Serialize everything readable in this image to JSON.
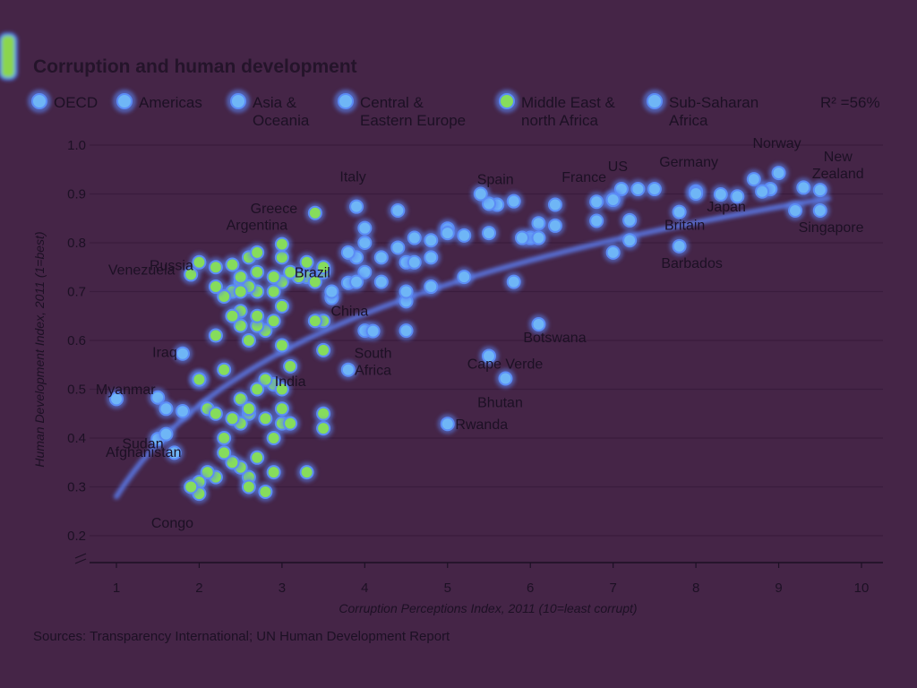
{
  "chart_data": {
    "type": "scatter",
    "title": "Corruption and human development",
    "xlabel": "Corruption Perceptions Index, 2011 (10=least corrupt)",
    "ylabel": "Human Development Index, 2011 (1=best)",
    "xlim": [
      1,
      10
    ],
    "ylim": [
      0.2,
      1.0
    ],
    "x_ticks": [
      "1",
      "2",
      "3",
      "4",
      "5",
      "6",
      "7",
      "8",
      "9",
      "10"
    ],
    "y_ticks": [
      "0.2",
      "0.3",
      "0.4",
      "0.5",
      "0.6",
      "0.7",
      "0.8",
      "0.9",
      "1.0"
    ],
    "grid": "horizontal",
    "legend_position": "top",
    "legend": [
      {
        "label": "OECD",
        "type": "marker"
      },
      {
        "label": "Americas",
        "type": "marker"
      },
      {
        "label": "Asia & Oceania",
        "lines": [
          "Asia &",
          "Oceania"
        ],
        "type": "marker"
      },
      {
        "label": "Central & Eastern Europe",
        "lines": [
          "Central &",
          "Eastern Europe"
        ],
        "type": "marker"
      },
      {
        "label": "Middle East & north Africa",
        "lines": [
          "Middle East &",
          "north Africa"
        ],
        "type": "marker"
      },
      {
        "label": "Sub-Saharan Africa",
        "lines": [
          "Sub-Saharan",
          "Africa"
        ],
        "type": "marker"
      },
      {
        "label": "R² =56%",
        "type": "line"
      }
    ],
    "annotations": [
      {
        "label": "Spain",
        "x": 5.6,
        "y": 0.88
      },
      {
        "label": "France",
        "x": 6.8,
        "y": 0.884
      },
      {
        "label": "US",
        "x": 7.1,
        "y": 0.91
      },
      {
        "label": "Germany",
        "x": 8.0,
        "y": 0.905
      },
      {
        "label": "Norway",
        "x": 9.0,
        "y": 0.943
      },
      {
        "label": "New Zealand",
        "lines": [
          "New",
          "Zealand"
        ],
        "x": 9.5,
        "y": 0.908
      },
      {
        "label": "Italy",
        "x": 3.9,
        "y": 0.874
      },
      {
        "label": "Greece",
        "x": 3.4,
        "y": 0.861
      },
      {
        "label": "Russia",
        "x": 2.4,
        "y": 0.755
      },
      {
        "label": "Argentina",
        "x": 3.0,
        "y": 0.797
      },
      {
        "label": "Brazil",
        "x": 3.8,
        "y": 0.718
      },
      {
        "label": "Venezuela",
        "x": 1.9,
        "y": 0.735
      },
      {
        "label": "Britain",
        "x": 7.8,
        "y": 0.863
      },
      {
        "label": "Japan",
        "x": 8.0,
        "y": 0.901
      },
      {
        "label": "Singapore",
        "x": 9.2,
        "y": 0.866
      },
      {
        "label": "Barbados",
        "x": 7.8,
        "y": 0.793
      },
      {
        "label": "Botswana",
        "x": 6.1,
        "y": 0.633
      },
      {
        "label": "China",
        "x": 3.6,
        "y": 0.687
      },
      {
        "label": "South Africa",
        "lines": [
          "South",
          "Africa"
        ],
        "x": 4.1,
        "y": 0.619
      },
      {
        "label": "Iraq",
        "x": 1.8,
        "y": 0.573
      },
      {
        "label": "India",
        "x": 3.1,
        "y": 0.547
      },
      {
        "label": "Cape Verde",
        "x": 5.5,
        "y": 0.568
      },
      {
        "label": "Bhutan",
        "x": 5.7,
        "y": 0.522
      },
      {
        "label": "Myanmar",
        "x": 1.5,
        "y": 0.483
      },
      {
        "label": "Sudan",
        "x": 1.6,
        "y": 0.408
      },
      {
        "label": "Rwanda",
        "x": 5.0,
        "y": 0.429
      },
      {
        "label": "Afghanistan",
        "x": 1.5,
        "y": 0.398
      },
      {
        "label": "Congo",
        "x": 2.0,
        "y": 0.286
      }
    ],
    "trend_line": {
      "label": "R² =56%",
      "r_squared": 0.56
    },
    "series": [
      {
        "name": "OECD",
        "points": [
          [
            9.5,
            0.908
          ],
          [
            9.3,
            0.913
          ],
          [
            9.0,
            0.943
          ],
          [
            8.9,
            0.91
          ],
          [
            8.8,
            0.905
          ],
          [
            8.7,
            0.93
          ],
          [
            8.5,
            0.895
          ],
          [
            8.3,
            0.899
          ],
          [
            8.0,
            0.905
          ],
          [
            7.8,
            0.863
          ],
          [
            7.5,
            0.91
          ],
          [
            7.3,
            0.91
          ],
          [
            7.1,
            0.91
          ],
          [
            7.0,
            0.888
          ],
          [
            6.8,
            0.884
          ],
          [
            6.3,
            0.878
          ],
          [
            6.1,
            0.84
          ],
          [
            5.8,
            0.885
          ],
          [
            5.6,
            0.878
          ],
          [
            5.5,
            0.88
          ],
          [
            5.2,
            0.815
          ],
          [
            5.0,
            0.829
          ],
          [
            4.8,
            0.77
          ],
          [
            4.6,
            0.81
          ],
          [
            4.4,
            0.866
          ],
          [
            3.9,
            0.874
          ],
          [
            3.4,
            0.861
          ],
          [
            3.0,
            0.77
          ],
          [
            2.6,
            0.77
          ]
        ]
      },
      {
        "name": "Americas",
        "points": [
          [
            7.8,
            0.793
          ],
          [
            7.0,
            0.78
          ],
          [
            7.2,
            0.805
          ],
          [
            6.0,
            0.81
          ],
          [
            5.5,
            0.82
          ],
          [
            4.8,
            0.805
          ],
          [
            4.2,
            0.77
          ],
          [
            3.8,
            0.718
          ],
          [
            3.3,
            0.73
          ],
          [
            3.0,
            0.797
          ],
          [
            3.0,
            0.72
          ],
          [
            2.9,
            0.7
          ],
          [
            2.7,
            0.7
          ],
          [
            2.5,
            0.72
          ],
          [
            2.5,
            0.66
          ],
          [
            2.4,
            0.7
          ],
          [
            2.2,
            0.75
          ],
          [
            1.9,
            0.735
          ],
          [
            1.8,
            0.455
          ],
          [
            2.6,
            0.6
          ],
          [
            2.2,
            0.61
          ],
          [
            2.8,
            0.62
          ],
          [
            3.2,
            0.73
          ],
          [
            3.5,
            0.74
          ],
          [
            4.0,
            0.74
          ],
          [
            2.7,
            0.63
          ],
          [
            2.0,
            0.52
          ]
        ]
      },
      {
        "name": "Asia & Oceania",
        "points": [
          [
            9.5,
            0.866
          ],
          [
            9.2,
            0.866
          ],
          [
            8.0,
            0.901
          ],
          [
            7.0,
            0.888
          ],
          [
            6.1,
            0.81
          ],
          [
            5.4,
            0.9
          ],
          [
            4.5,
            0.68
          ],
          [
            4.0,
            0.62
          ],
          [
            3.6,
            0.687
          ],
          [
            3.5,
            0.64
          ],
          [
            3.1,
            0.547
          ],
          [
            3.0,
            0.59
          ],
          [
            2.9,
            0.51
          ],
          [
            2.8,
            0.52
          ],
          [
            2.7,
            0.5
          ],
          [
            2.6,
            0.45
          ],
          [
            2.5,
            0.48
          ],
          [
            2.3,
            0.54
          ],
          [
            2.1,
            0.46
          ],
          [
            1.5,
            0.483
          ],
          [
            1.5,
            0.398
          ],
          [
            1.0,
            0.48
          ]
        ]
      },
      {
        "name": "Central & Eastern Europe",
        "points": [
          [
            6.3,
            0.835
          ],
          [
            5.9,
            0.81
          ],
          [
            5.0,
            0.82
          ],
          [
            4.5,
            0.76
          ],
          [
            4.4,
            0.79
          ],
          [
            4.0,
            0.8
          ],
          [
            4.0,
            0.83
          ],
          [
            3.9,
            0.77
          ],
          [
            3.8,
            0.78
          ],
          [
            3.5,
            0.75
          ],
          [
            3.4,
            0.72
          ],
          [
            3.3,
            0.76
          ],
          [
            3.1,
            0.74
          ],
          [
            2.9,
            0.73
          ],
          [
            2.7,
            0.74
          ],
          [
            2.6,
            0.71
          ],
          [
            2.5,
            0.73
          ],
          [
            2.4,
            0.755
          ],
          [
            2.3,
            0.69
          ],
          [
            2.2,
            0.71
          ],
          [
            2.0,
            0.76
          ],
          [
            2.7,
            0.78
          ]
        ]
      },
      {
        "name": "Middle East & north Africa",
        "points": [
          [
            7.2,
            0.846
          ],
          [
            6.8,
            0.845
          ],
          [
            5.8,
            0.72
          ],
          [
            5.2,
            0.73
          ],
          [
            4.8,
            0.71
          ],
          [
            4.6,
            0.76
          ],
          [
            4.5,
            0.7
          ],
          [
            4.2,
            0.72
          ],
          [
            3.9,
            0.72
          ],
          [
            3.6,
            0.7
          ],
          [
            3.4,
            0.64
          ],
          [
            3.0,
            0.67
          ],
          [
            2.9,
            0.64
          ],
          [
            2.7,
            0.65
          ],
          [
            2.5,
            0.7
          ],
          [
            2.5,
            0.63
          ],
          [
            2.4,
            0.65
          ],
          [
            2.0,
            0.52
          ],
          [
            1.8,
            0.573
          ],
          [
            1.6,
            0.46
          ],
          [
            2.9,
            0.4
          ],
          [
            3.0,
            0.43
          ]
        ]
      },
      {
        "name": "Sub-Saharan Africa",
        "points": [
          [
            6.1,
            0.633
          ],
          [
            5.5,
            0.568
          ],
          [
            5.7,
            0.522
          ],
          [
            5.0,
            0.429
          ],
          [
            4.5,
            0.62
          ],
          [
            4.1,
            0.619
          ],
          [
            3.8,
            0.54
          ],
          [
            3.5,
            0.58
          ],
          [
            3.5,
            0.45
          ],
          [
            3.5,
            0.42
          ],
          [
            3.3,
            0.33
          ],
          [
            3.1,
            0.43
          ],
          [
            3.0,
            0.5
          ],
          [
            3.0,
            0.46
          ],
          [
            2.9,
            0.33
          ],
          [
            2.8,
            0.44
          ],
          [
            2.7,
            0.36
          ],
          [
            2.6,
            0.46
          ],
          [
            2.6,
            0.32
          ],
          [
            2.5,
            0.43
          ],
          [
            2.5,
            0.34
          ],
          [
            2.4,
            0.44
          ],
          [
            2.4,
            0.35
          ],
          [
            2.3,
            0.4
          ],
          [
            2.3,
            0.37
          ],
          [
            2.2,
            0.45
          ],
          [
            2.2,
            0.32
          ],
          [
            2.1,
            0.33
          ],
          [
            2.0,
            0.31
          ],
          [
            2.0,
            0.286
          ],
          [
            1.9,
            0.3
          ],
          [
            1.7,
            0.37
          ],
          [
            1.6,
            0.408
          ],
          [
            2.6,
            0.3
          ],
          [
            2.8,
            0.29
          ]
        ]
      }
    ]
  },
  "source": "Sources: Transparency International; UN Human Development Report"
}
